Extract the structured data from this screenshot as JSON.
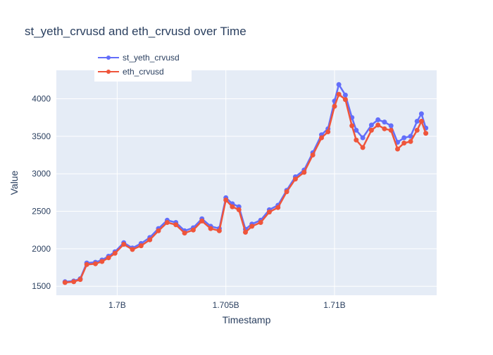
{
  "chart_data": {
    "type": "line",
    "title": "st_yeth_crvusd and eth_crvusd over Time",
    "xlabel": "Timestamp",
    "ylabel": "Value",
    "x_range": [
      1697200000,
      1714700000
    ],
    "ylim": [
      1380,
      4380
    ],
    "x_ticks": [
      {
        "value": 1700000000,
        "label": "1.7B"
      },
      {
        "value": 1705000000,
        "label": "1.705B"
      },
      {
        "value": 1710000000,
        "label": "1.71B"
      }
    ],
    "y_ticks": [
      {
        "value": 1500,
        "label": "1500"
      },
      {
        "value": 2000,
        "label": "2000"
      },
      {
        "value": 2500,
        "label": "2500"
      },
      {
        "value": 3000,
        "label": "3000"
      },
      {
        "value": 3500,
        "label": "3500"
      },
      {
        "value": 4000,
        "label": "4000"
      }
    ],
    "grid": true,
    "legend_position": "top-left",
    "x": [
      1697600000,
      1698000000,
      1698300000,
      1698600000,
      1699000000,
      1699300000,
      1699600000,
      1699900000,
      1700300000,
      1700700000,
      1701100000,
      1701500000,
      1701900000,
      1702300000,
      1702700000,
      1703100000,
      1703500000,
      1703900000,
      1704300000,
      1704700000,
      1705000000,
      1705300000,
      1705600000,
      1705900000,
      1706200000,
      1706600000,
      1707000000,
      1707400000,
      1707800000,
      1708200000,
      1708600000,
      1709000000,
      1709400000,
      1709700000,
      1710000000,
      1710200000,
      1710500000,
      1710800000,
      1711000000,
      1711300000,
      1711700000,
      1712000000,
      1712300000,
      1712600000,
      1712900000,
      1713200000,
      1713500000,
      1713800000,
      1714000000,
      1714200000
    ],
    "series": [
      {
        "name": "st_yeth_crvusd",
        "color": "#636efa",
        "values": [
          1560,
          1570,
          1600,
          1810,
          1820,
          1850,
          1900,
          1960,
          2080,
          2010,
          2070,
          2150,
          2270,
          2380,
          2350,
          2240,
          2280,
          2400,
          2300,
          2270,
          2680,
          2600,
          2560,
          2260,
          2330,
          2380,
          2520,
          2580,
          2780,
          2960,
          3050,
          3280,
          3520,
          3600,
          3970,
          4190,
          4050,
          3750,
          3580,
          3480,
          3650,
          3720,
          3690,
          3640,
          3420,
          3480,
          3500,
          3700,
          3800,
          3610
        ]
      },
      {
        "name": "eth_crvusd",
        "color": "#ef553b",
        "values": [
          1550,
          1560,
          1590,
          1790,
          1800,
          1830,
          1880,
          1940,
          2060,
          1990,
          2040,
          2120,
          2240,
          2350,
          2320,
          2210,
          2250,
          2370,
          2270,
          2240,
          2650,
          2560,
          2520,
          2220,
          2300,
          2350,
          2490,
          2550,
          2760,
          2930,
          3020,
          3250,
          3480,
          3560,
          3900,
          4060,
          3990,
          3640,
          3450,
          3350,
          3580,
          3650,
          3600,
          3580,
          3330,
          3410,
          3430,
          3580,
          3700,
          3540
        ]
      }
    ]
  }
}
